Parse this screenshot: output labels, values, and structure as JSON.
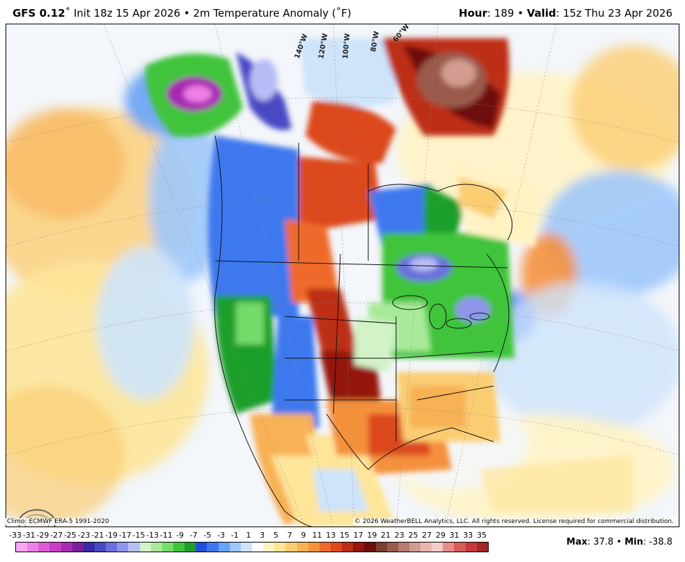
{
  "header": {
    "model": "GFS 0.12",
    "degree": "˚",
    "init": " Init 18z 15 Apr 2026",
    "sep": " • ",
    "field": "2m Temperature Anomaly (˚F)",
    "hour_label": "Hour",
    "hour_value": ": 189",
    "valid_label": "Valid",
    "valid_value": ": 15z Thu 23 Apr 2026"
  },
  "map": {
    "longitude_labels": [
      "140°W",
      "120°W",
      "100°W",
      "80°W",
      "60°W"
    ],
    "colors": {
      "very_cold": "#8b1fa8",
      "cold": "#2f6ff0",
      "cool": "#7ec0f7",
      "green": "#3fc43a",
      "neutral": "#f4f7fb",
      "warm": "#fde9a8",
      "orange": "#f5a04a",
      "hot": "#d4451b",
      "very_hot": "#8a1a0e",
      "brown": "#6b3b2a"
    }
  },
  "footer": {
    "climo": "Climo: ECMWF ERA-5 1991-2020",
    "copyright": "© 2026 WeatherBELL Analytics, LLC. All rights reserved. License required for commercial distribution.",
    "logo_text": "WeatherBELL"
  },
  "legend": {
    "ticks": [
      "-33",
      "-31",
      "-29",
      "-27",
      "-25",
      "-23",
      "-21",
      "-19",
      "-17",
      "-15",
      "-13",
      "-11",
      "-9",
      "-7",
      "-5",
      "-3",
      "-1",
      "1",
      "3",
      "5",
      "7",
      "9",
      "11",
      "13",
      "15",
      "17",
      "19",
      "21",
      "23",
      "25",
      "27",
      "29",
      "31",
      "33",
      "35"
    ],
    "colors": [
      "#f7a7f0",
      "#ee7fe6",
      "#e05ad8",
      "#c93cc6",
      "#a82ab2",
      "#7c1f9d",
      "#3b2aa6",
      "#4a48c4",
      "#6a6fdc",
      "#8f95ec",
      "#b7bdf5",
      "#d2f2c8",
      "#a8ea9a",
      "#75dc6a",
      "#3fc43a",
      "#1d9f2a",
      "#1f4fe0",
      "#3d78ee",
      "#68a3f4",
      "#9ec8f9",
      "#cde4fb",
      "#ffffff",
      "#fff3c4",
      "#fde59a",
      "#fbcd73",
      "#f8b155",
      "#f5913e",
      "#ef6b2b",
      "#dc4a1e",
      "#bd2f14",
      "#94180d",
      "#6e0e08",
      "#7a4030",
      "#9a5a4c",
      "#b87a6c",
      "#d29c90",
      "#e8b8b0",
      "#f2cfc9",
      "#e98b8b",
      "#d95a5a",
      "#c43a3a",
      "#a52525"
    ],
    "max_label": "Max",
    "max_value": ": 37.8",
    "sep": " • ",
    "min_label": "Min",
    "min_value": ": -38.8"
  }
}
